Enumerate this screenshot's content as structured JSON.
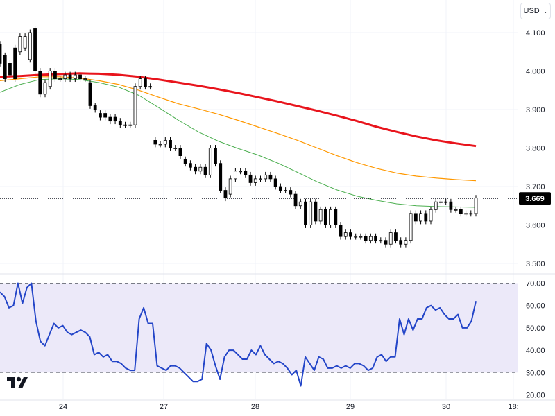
{
  "currency_selector": {
    "label": "USD",
    "icon": "chevron-down-icon"
  },
  "logo": {
    "name": "TradingView",
    "icon": "tradingview-logo-icon"
  },
  "colors": {
    "bull_body": "#ffffff",
    "bear_body": "#000000",
    "candle_outline": "#000000",
    "ma_slow": "#e8141c",
    "ma_mid": "#ff9800",
    "ma_fast": "#4caf50",
    "rsi_line": "#2345c8",
    "rsi_band": "#ece9f9",
    "price_tag_bg": "#000000",
    "price_tag_text": "#ffffff"
  },
  "chart_data": [
    {
      "type": "candlestick",
      "panel": "price",
      "x_labels": [
        "24",
        "27",
        "28",
        "29",
        "30",
        "18:"
      ],
      "ylim": [
        3.48,
        4.15
      ],
      "y_ticks": [
        "3.500",
        "3.600",
        "3.700",
        "3.800",
        "3.900",
        "4.000",
        "4.100"
      ],
      "last_price": "3.669",
      "candles": [
        [
          4.07,
          4.02
        ],
        [
          4.04,
          3.98
        ],
        [
          4.02,
          3.99
        ],
        [
          4.06,
          3.98
        ],
        [
          4.05,
          4.09
        ],
        [
          4.06,
          4.09
        ],
        [
          4.03,
          4.1
        ],
        [
          4.11,
          4.0
        ],
        [
          4.0,
          3.94
        ],
        [
          3.94,
          3.97
        ],
        [
          3.96,
          4.0
        ],
        [
          4.0,
          3.98
        ],
        [
          3.98,
          3.98
        ],
        [
          3.98,
          3.99
        ],
        [
          3.99,
          3.98
        ],
        [
          3.98,
          3.99
        ],
        [
          3.99,
          3.98
        ],
        [
          3.98,
          3.98
        ],
        [
          3.97,
          3.91
        ],
        [
          3.91,
          3.9
        ],
        [
          3.89,
          3.88
        ],
        [
          3.89,
          3.88
        ],
        [
          3.88,
          3.87
        ],
        [
          3.88,
          3.87
        ],
        [
          3.87,
          3.86
        ],
        [
          3.86,
          3.86
        ],
        [
          3.86,
          3.86
        ],
        [
          3.86,
          3.96
        ],
        [
          3.96,
          3.98
        ],
        [
          3.98,
          3.96
        ],
        [
          3.96,
          3.96
        ],
        [
          3.82,
          3.81
        ],
        [
          3.81,
          3.81
        ],
        [
          3.81,
          3.82
        ],
        [
          3.82,
          3.8
        ],
        [
          3.8,
          3.8
        ],
        [
          3.8,
          3.78
        ],
        [
          3.77,
          3.76
        ],
        [
          3.76,
          3.75
        ],
        [
          3.75,
          3.74
        ],
        [
          3.74,
          3.75
        ],
        [
          3.75,
          3.73
        ],
        [
          3.73,
          3.8
        ],
        [
          3.8,
          3.76
        ],
        [
          3.76,
          3.69
        ],
        [
          3.69,
          3.67
        ],
        [
          3.68,
          3.72
        ],
        [
          3.72,
          3.74
        ],
        [
          3.74,
          3.74
        ],
        [
          3.74,
          3.73
        ],
        [
          3.73,
          3.71
        ],
        [
          3.71,
          3.72
        ],
        [
          3.72,
          3.72
        ],
        [
          3.72,
          3.73
        ],
        [
          3.73,
          3.72
        ],
        [
          3.72,
          3.7
        ],
        [
          3.7,
          3.69
        ],
        [
          3.69,
          3.69
        ],
        [
          3.69,
          3.68
        ],
        [
          3.68,
          3.65
        ],
        [
          3.65,
          3.66
        ],
        [
          3.66,
          3.6
        ],
        [
          3.6,
          3.66
        ],
        [
          3.66,
          3.61
        ],
        [
          3.61,
          3.64
        ],
        [
          3.64,
          3.6
        ],
        [
          3.6,
          3.64
        ],
        [
          3.64,
          3.6
        ],
        [
          3.6,
          3.57
        ],
        [
          3.57,
          3.58
        ],
        [
          3.58,
          3.57
        ],
        [
          3.57,
          3.57
        ],
        [
          3.57,
          3.57
        ],
        [
          3.57,
          3.56
        ],
        [
          3.56,
          3.57
        ],
        [
          3.57,
          3.56
        ],
        [
          3.56,
          3.56
        ],
        [
          3.56,
          3.55
        ],
        [
          3.55,
          3.58
        ],
        [
          3.58,
          3.56
        ],
        [
          3.56,
          3.55
        ],
        [
          3.55,
          3.56
        ],
        [
          3.56,
          3.63
        ],
        [
          3.63,
          3.61
        ],
        [
          3.61,
          3.63
        ],
        [
          3.63,
          3.61
        ],
        [
          3.61,
          3.64
        ],
        [
          3.64,
          3.66
        ],
        [
          3.66,
          3.66
        ],
        [
          3.66,
          3.66
        ],
        [
          3.66,
          3.64
        ],
        [
          3.64,
          3.64
        ],
        [
          3.64,
          3.63
        ],
        [
          3.63,
          3.63
        ],
        [
          3.63,
          3.63
        ],
        [
          3.63,
          3.67
        ]
      ],
      "moving_averages": [
        {
          "color_key": "ma_slow",
          "values": [
            3.985,
            3.987,
            3.99,
            3.992,
            3.994,
            3.993,
            3.99,
            3.985,
            3.978,
            3.97,
            3.962,
            3.953,
            3.943,
            3.932,
            3.921,
            3.909,
            3.897,
            3.884,
            3.87,
            3.855,
            3.842,
            3.83,
            3.82,
            3.812,
            3.805
          ]
        },
        {
          "color_key": "ma_mid",
          "values": [
            3.975,
            3.98,
            3.985,
            3.985,
            3.982,
            3.975,
            3.965,
            3.95,
            3.932,
            3.915,
            3.902,
            3.888,
            3.872,
            3.855,
            3.838,
            3.82,
            3.8,
            3.78,
            3.762,
            3.747,
            3.735,
            3.727,
            3.722,
            3.718,
            3.715
          ]
        },
        {
          "color_key": "ma_fast",
          "values": [
            3.945,
            3.965,
            3.978,
            3.98,
            3.978,
            3.97,
            3.958,
            3.937,
            3.905,
            3.872,
            3.842,
            3.818,
            3.799,
            3.782,
            3.761,
            3.737,
            3.712,
            3.691,
            3.675,
            3.664,
            3.655,
            3.65,
            3.648,
            3.647,
            3.646
          ]
        }
      ]
    },
    {
      "type": "line",
      "panel": "RSI",
      "x_labels": [
        "24",
        "27",
        "28",
        "29",
        "30",
        "18:"
      ],
      "ylim": [
        20,
        75
      ],
      "y_ticks": [
        "20.00",
        "30.00",
        "40.00",
        "50.00",
        "60.00",
        "70.00"
      ],
      "band": [
        30,
        70
      ],
      "values": [
        66,
        64,
        59,
        60,
        70,
        61,
        68,
        70,
        53,
        44,
        42,
        47,
        52,
        50,
        51,
        48,
        47,
        48,
        49,
        48,
        46,
        38,
        39,
        37,
        38,
        35,
        35,
        34,
        32,
        31,
        31,
        54,
        59,
        52,
        52,
        33,
        32,
        31,
        33,
        33,
        32,
        30,
        28,
        26,
        26,
        27,
        43,
        40,
        33,
        27,
        37,
        40,
        40,
        38,
        36,
        36,
        40,
        38,
        42,
        38,
        36,
        34,
        35,
        34,
        32,
        29,
        31,
        24,
        37,
        34,
        31,
        37,
        36,
        32,
        32,
        33,
        32,
        33,
        32,
        34,
        34,
        33,
        31,
        32,
        37,
        38,
        35,
        37,
        37,
        54,
        47,
        54,
        49,
        54,
        54,
        59,
        60,
        58,
        59,
        56,
        54,
        54,
        56,
        50,
        50,
        53,
        62
      ]
    }
  ]
}
